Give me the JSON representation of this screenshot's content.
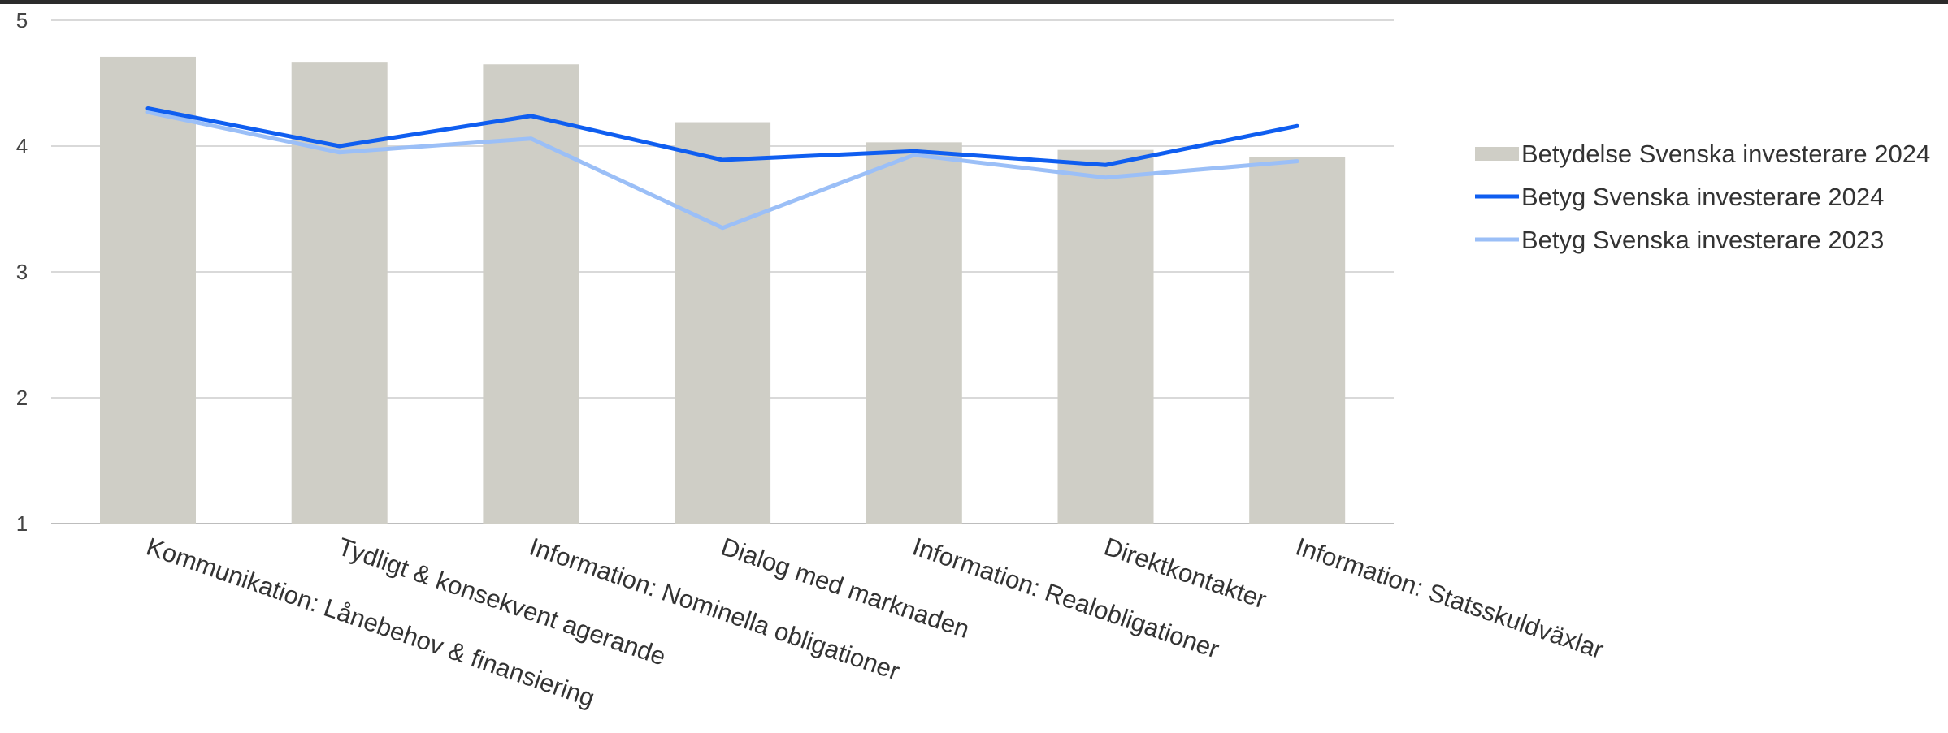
{
  "chart_data": {
    "type": "bar",
    "categories": [
      "Kommunikation: Lånebehov & finansiering",
      "Tydligt & konsekvent agerande",
      "Information: Nominella obligationer",
      "Dialog med marknaden",
      "Information: Realobligationer",
      "Direktkontakter",
      "Information: Statsskuldväxlar"
    ],
    "series": [
      {
        "name": "Betydelse Svenska investerare 2024",
        "type": "bar",
        "color": "#cfcec6",
        "values": [
          4.71,
          4.67,
          4.65,
          4.19,
          4.03,
          3.97,
          3.91
        ]
      },
      {
        "name": "Betyg Svenska investerare 2024",
        "type": "line",
        "color": "#0f5ef0",
        "values": [
          4.3,
          4.0,
          4.24,
          3.89,
          3.96,
          3.85,
          4.16
        ]
      },
      {
        "name": "Betyg Svenska investerare 2023",
        "type": "line",
        "color": "#9bbff7",
        "values": [
          4.27,
          3.95,
          4.06,
          3.35,
          3.93,
          3.75,
          3.88
        ]
      }
    ],
    "ylim": [
      1,
      5
    ],
    "yticks": [
      "1",
      "2",
      "3",
      "4",
      "5"
    ],
    "grid": true,
    "legend": "right"
  }
}
